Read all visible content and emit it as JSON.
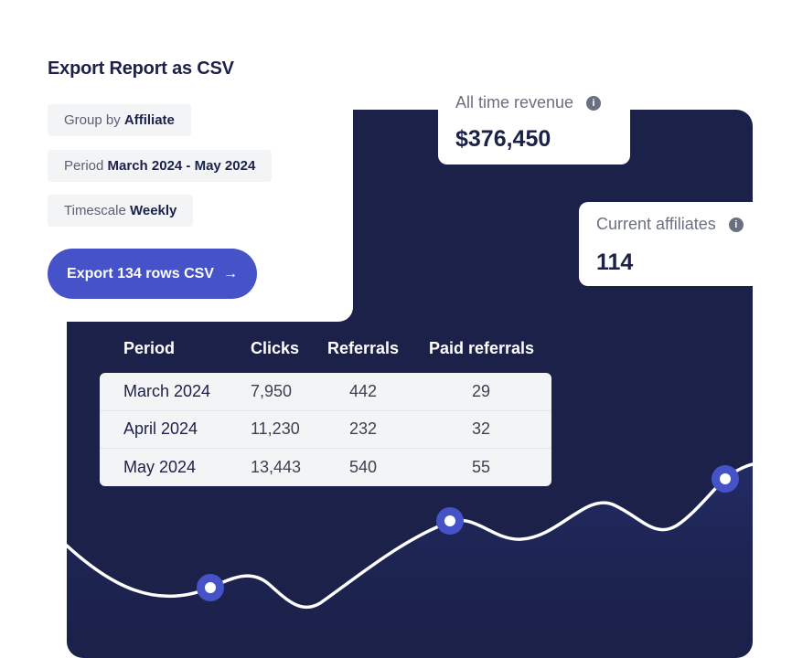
{
  "export": {
    "title": "Export Report as CSV",
    "group_by": {
      "label": "Group by",
      "value": "Affiliate"
    },
    "period": {
      "label": "Period",
      "value": "March 2024 - May 2024"
    },
    "timescale": {
      "label": "Timescale",
      "value": "Weekly"
    },
    "button_label": "Export 134 rows CSV",
    "button_icon": "arrow-right-icon"
  },
  "stats": {
    "revenue": {
      "label": "All time revenue",
      "value": "$376,450",
      "icon": "info-icon"
    },
    "affiliates": {
      "label": "Current affiliates",
      "value": "114",
      "icon": "info-icon"
    }
  },
  "table": {
    "columns": [
      "Period",
      "Clicks",
      "Referrals",
      "Paid referrals"
    ],
    "rows": [
      {
        "period": "March 2024",
        "clicks": "7,950",
        "referrals": "442",
        "paid": "29"
      },
      {
        "period": "April 2024",
        "clicks": "11,230",
        "referrals": "232",
        "paid": "32"
      },
      {
        "period": "May 2024",
        "clicks": "13,443",
        "referrals": "540",
        "paid": "55"
      }
    ]
  },
  "colors": {
    "panel": "#1b2149",
    "accent": "#4653c8",
    "text_dark": "#1b2149",
    "chip_bg": "#f3f4f6",
    "line": "#ffffff"
  }
}
